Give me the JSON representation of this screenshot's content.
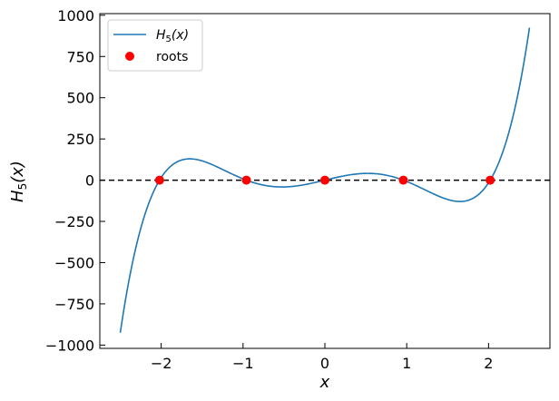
{
  "chart_data": {
    "type": "line",
    "xlabel": "x",
    "ylabel": {
      "base": "H",
      "sub": "5",
      "suffix": "(x)"
    },
    "xlim": [
      -2.75,
      2.75
    ],
    "ylim": [
      -1020,
      1010
    ],
    "xticks": [
      -2,
      -1,
      0,
      1,
      2
    ],
    "yticks": [
      -1000,
      -750,
      -500,
      -250,
      0,
      250,
      500,
      750,
      1000
    ],
    "xtick_labels": [
      "−2",
      "−1",
      "0",
      "1",
      "2"
    ],
    "ytick_labels": [
      "−1000",
      "−750",
      "−500",
      "−250",
      "0",
      "250",
      "500",
      "750",
      "1000"
    ],
    "series": [
      {
        "name": {
          "base": "H",
          "sub": "5",
          "suffix": "(x)"
        },
        "kind": "line",
        "color": "#1f77b4",
        "function": "32x^5 - 160x^3 + 120x",
        "x_range": [
          -2.5,
          2.5
        ]
      },
      {
        "name": "roots",
        "kind": "scatter",
        "color": "#ff0000",
        "x": [
          -2.02,
          -0.959,
          0,
          0.959,
          2.02
        ],
        "y": [
          0,
          0,
          0,
          0,
          0
        ]
      }
    ],
    "reference_line": {
      "y": 0,
      "style": "dashed",
      "color": "#000000"
    },
    "legend": {
      "position": "top-left"
    },
    "grid": false
  }
}
